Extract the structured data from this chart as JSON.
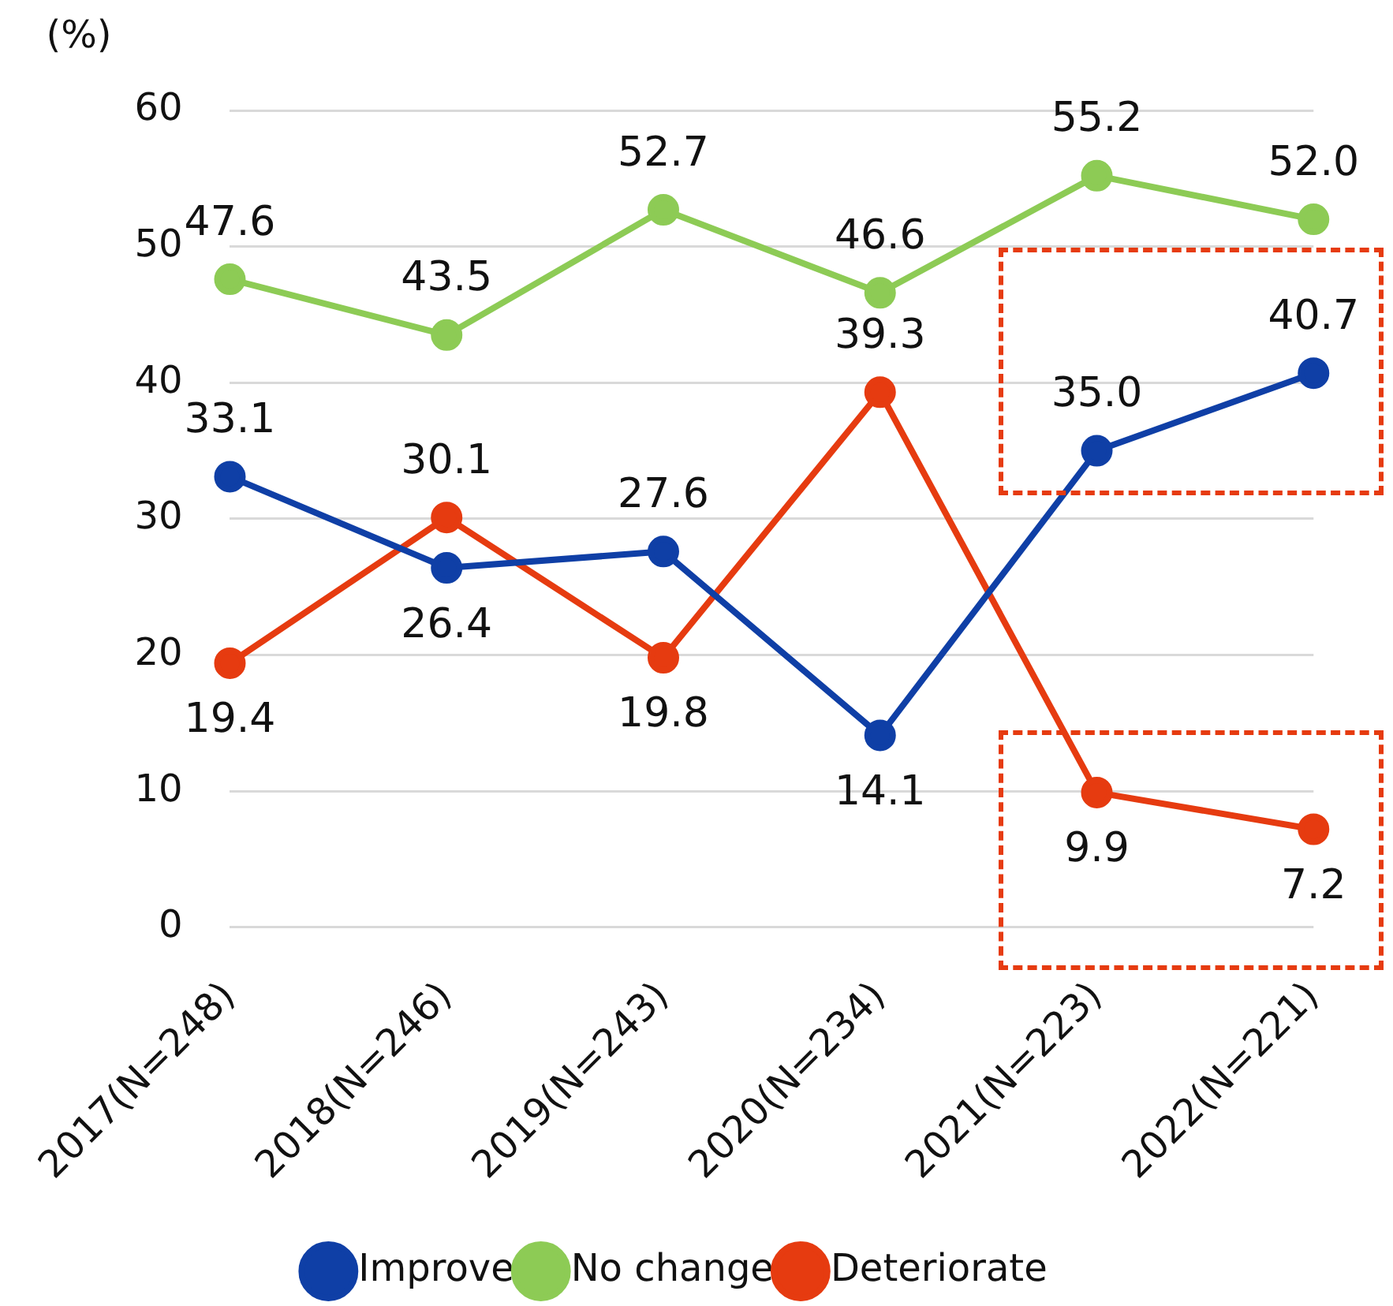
{
  "chart_data": {
    "type": "line",
    "ylabel": "(%)",
    "categories": [
      "2017(N=248)",
      "2018(N=246)",
      "2019(N=243)",
      "2020(N=234)",
      "2021(N=223)",
      "2022(N=221)"
    ],
    "series": [
      {
        "name": "Improve",
        "color": "#0f3fa6",
        "values": [
          33.1,
          26.4,
          27.6,
          14.1,
          35.0,
          40.7
        ],
        "value_labels": [
          "33.1",
          "26.4",
          "27.6",
          "14.1",
          "35.0",
          "40.7"
        ]
      },
      {
        "name": "No change",
        "color": "#8dcb55",
        "values": [
          47.6,
          43.5,
          52.7,
          46.6,
          55.2,
          52.0
        ],
        "value_labels": [
          "47.6",
          "43.5",
          "52.7",
          "46.6",
          "55.2",
          "52.0"
        ]
      },
      {
        "name": "Deteriorate",
        "color": "#e63b10",
        "values": [
          19.4,
          30.1,
          19.8,
          39.3,
          9.9,
          7.2
        ],
        "value_labels": [
          "19.4",
          "30.1",
          "19.8",
          "39.3",
          "9.9",
          "7.2"
        ]
      }
    ],
    "ylim": [
      0,
      60
    ],
    "yticks": [
      0,
      10,
      20,
      30,
      40,
      50,
      60
    ],
    "grid": "y",
    "legend": "bottom",
    "marker": "circle",
    "line_style": "solid"
  }
}
